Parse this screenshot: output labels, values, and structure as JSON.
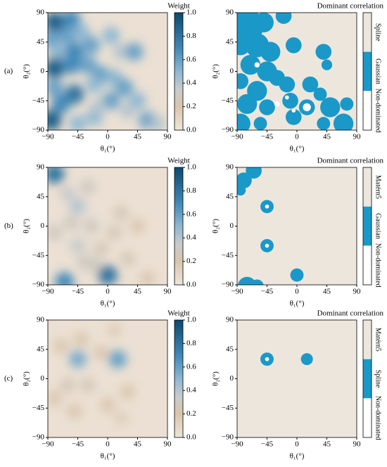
{
  "row_labels": [
    "(a)",
    "(b)",
    "(c)"
  ],
  "chart_data": [
    {
      "type": "heatmap",
      "colorbar_title": "Weight",
      "xlabel": "θ₁(°)",
      "ylabel": "θ₂(°)",
      "xlim": [
        -90,
        90
      ],
      "ylim": [
        -90,
        90
      ],
      "xticks": [
        {
          "value": -90,
          "label": "−90"
        },
        {
          "value": -45,
          "label": "−45"
        },
        0,
        45,
        90
      ],
      "yticks": [
        {
          "value": -90,
          "label": "−90"
        },
        {
          "value": -45,
          "label": "−45"
        },
        0,
        45,
        90
      ],
      "clim": [
        0,
        1
      ],
      "cticks": [
        {
          "value": 0,
          "label": "0.0"
        },
        {
          "value": 0.2,
          "label": "0.2"
        },
        {
          "value": 0.4,
          "label": "0.4"
        },
        {
          "value": 0.6,
          "label": "0.6"
        },
        {
          "value": 0.8,
          "label": "0.8"
        },
        {
          "value": 1,
          "label": "1.0"
        }
      ],
      "x": [
        -80,
        -55,
        -85,
        -60,
        -40,
        -25,
        -75,
        -50,
        -80,
        -55,
        -30,
        -10,
        -20,
        -80,
        -50,
        -70,
        -85,
        -45,
        -20,
        5,
        10,
        25,
        45,
        60,
        20,
        5,
        40,
        30,
        75,
        -15
      ],
      "y": [
        75,
        80,
        50,
        55,
        60,
        40,
        30,
        30,
        5,
        10,
        10,
        -5,
        -20,
        -25,
        -35,
        -50,
        -75,
        -80,
        -70,
        -45,
        -10,
        -25,
        -45,
        -75,
        30,
        55,
        30,
        -60,
        -80,
        -55
      ],
      "values": [
        0.9,
        0.7,
        0.6,
        0.6,
        0.5,
        0.6,
        0.5,
        0.7,
        0.9,
        0.7,
        0.6,
        0.6,
        0.5,
        0.6,
        0.8,
        0.7,
        0.9,
        0.5,
        0.5,
        0.6,
        0.5,
        0.6,
        0.5,
        0.6,
        0.4,
        0.5,
        0.6,
        0.4,
        0.4,
        0.4
      ]
    },
    {
      "type": "category_map",
      "colorbar_title": "Dominant correlation",
      "xlabel": "θ₁(°)",
      "ylabel": "θ₂(°)",
      "xlim": [
        -90,
        90
      ],
      "ylim": [
        -90,
        90
      ],
      "xticks": [
        {
          "value": -90,
          "label": "−90"
        },
        {
          "value": -45,
          "label": "−45"
        },
        0,
        45,
        90
      ],
      "yticks": [
        {
          "value": -90,
          "label": "−90"
        },
        {
          "value": -45,
          "label": "−45"
        },
        0,
        45,
        90
      ],
      "categories": [
        "Spline",
        "Gaussian",
        "Non-dominated"
      ],
      "colors": [
        "#ede6dd",
        "#1a99c9",
        "#ffffff"
      ],
      "x": [
        -75,
        -50,
        -85,
        -60,
        -40,
        -70,
        -45,
        -30,
        -15,
        -85,
        -60,
        -75,
        -45,
        -85,
        -55,
        -10,
        -5,
        20,
        15,
        35,
        50,
        70,
        40,
        -5,
        -20,
        40,
        45,
        75,
        -30,
        -60,
        -15,
        -5,
        15
      ],
      "y": [
        70,
        75,
        40,
        40,
        30,
        10,
        0,
        -10,
        -20,
        -15,
        -30,
        -50,
        -55,
        -80,
        -80,
        -45,
        -70,
        -20,
        -55,
        -35,
        -55,
        -80,
        -80,
        40,
        85,
        30,
        10,
        -50,
        -50,
        10,
        -40,
        -60,
        -55
      ],
      "size": [
        25,
        15,
        15,
        18,
        15,
        15,
        15,
        12,
        12,
        12,
        15,
        15,
        12,
        15,
        10,
        12,
        12,
        12,
        12,
        10,
        15,
        15,
        10,
        12,
        12,
        12,
        8,
        10,
        4,
        4,
        3,
        3,
        6
      ],
      "category": [
        1,
        1,
        1,
        1,
        1,
        1,
        1,
        1,
        1,
        1,
        1,
        1,
        1,
        1,
        1,
        1,
        1,
        1,
        1,
        1,
        1,
        1,
        1,
        1,
        1,
        1,
        1,
        1,
        2,
        2,
        2,
        2,
        2
      ]
    },
    {
      "type": "heatmap",
      "colorbar_title": "Weight",
      "xlabel": "θ₁(°)",
      "ylabel": "θ₂(°)",
      "xlim": [
        -90,
        90
      ],
      "ylim": [
        -90,
        90
      ],
      "xticks": [
        {
          "value": -90,
          "label": "−90"
        },
        {
          "value": -45,
          "label": "−45"
        },
        0,
        45,
        90
      ],
      "yticks": [
        {
          "value": -90,
          "label": "−90"
        },
        {
          "value": -45,
          "label": "−45"
        },
        0,
        45,
        90
      ],
      "clim": [
        0,
        1
      ],
      "cticks": [
        {
          "value": 0,
          "label": "0.0"
        },
        {
          "value": 0.2,
          "label": "0.2"
        },
        {
          "value": 0.4,
          "label": "0.4"
        },
        {
          "value": 0.6,
          "label": "0.6"
        },
        {
          "value": 0.8,
          "label": "0.8"
        },
        {
          "value": 1,
          "label": "1.0"
        }
      ],
      "x": [
        -80,
        -65,
        0,
        -45,
        -45,
        -60,
        -30,
        -55,
        -25,
        -80,
        -10,
        30,
        20,
        45,
        -20,
        60,
        -35,
        10
      ],
      "y": [
        80,
        -85,
        -75,
        30,
        -30,
        50,
        60,
        5,
        0,
        -10,
        -35,
        -50,
        20,
        0,
        -60,
        -80,
        -55,
        -10
      ],
      "values": [
        0.8,
        0.7,
        0.8,
        0.4,
        0.35,
        0.35,
        0.3,
        0.3,
        0.3,
        0.3,
        0.25,
        0.25,
        0.25,
        0.2,
        0.3,
        0.2,
        0.3,
        0.25
      ]
    },
    {
      "type": "category_map",
      "colorbar_title": "Dominant correlation",
      "xlabel": "θ₁(°)",
      "ylabel": "θ₂(°)",
      "xlim": [
        -90,
        90
      ],
      "ylim": [
        -90,
        90
      ],
      "xticks": [
        {
          "value": -90,
          "label": "−90"
        },
        {
          "value": -45,
          "label": "−45"
        },
        0,
        45,
        90
      ],
      "yticks": [
        {
          "value": -90,
          "label": "−90"
        },
        {
          "value": -45,
          "label": "−45"
        },
        0,
        45,
        90
      ],
      "categories": [
        "Matérn5",
        "Gaussian",
        "Non-dominated"
      ],
      "colors": [
        "#ede6dd",
        "#1a99c9",
        "#ffffff"
      ],
      "x": [
        -80,
        -65,
        -85,
        -45,
        -45,
        0,
        -75,
        -60,
        -45,
        -45
      ],
      "y": [
        70,
        85,
        55,
        30,
        -30,
        -75,
        -92,
        -92,
        30,
        -30
      ],
      "size": [
        12,
        12,
        8,
        10,
        10,
        10,
        14,
        10,
        3,
        3
      ],
      "category": [
        1,
        1,
        1,
        1,
        1,
        1,
        1,
        1,
        2,
        2
      ]
    },
    {
      "type": "heatmap",
      "colorbar_title": "Weight",
      "xlabel": "θ₁(°)",
      "ylabel": "θ₂(°)",
      "xlim": [
        -90,
        90
      ],
      "ylim": [
        -90,
        90
      ],
      "xticks": [
        {
          "value": -90,
          "label": "−90"
        },
        {
          "value": -45,
          "label": "−45"
        },
        0,
        45,
        90
      ],
      "yticks": [
        {
          "value": -90,
          "label": "−90"
        },
        {
          "value": -45,
          "label": "−45"
        },
        0,
        45,
        90
      ],
      "clim": [
        0,
        1
      ],
      "cticks": [
        {
          "value": 0,
          "label": "0.0"
        },
        {
          "value": 0.2,
          "label": "0.2"
        },
        {
          "value": 0.4,
          "label": "0.4"
        },
        {
          "value": 0.6,
          "label": "0.6"
        },
        {
          "value": 0.8,
          "label": "0.8"
        },
        {
          "value": 1,
          "label": "1.0"
        }
      ],
      "x": [
        -45,
        15,
        -60,
        -30,
        -10,
        -70,
        -40,
        0,
        30,
        -50,
        20,
        -80,
        10
      ],
      "y": [
        30,
        30,
        -10,
        -10,
        40,
        50,
        60,
        -40,
        -20,
        -50,
        -60,
        -30,
        75
      ],
      "values": [
        0.55,
        0.6,
        0.25,
        0.25,
        0.2,
        0.2,
        0.2,
        0.2,
        0.2,
        0.2,
        0.15,
        0.2,
        0.15
      ]
    },
    {
      "type": "category_map",
      "colorbar_title": "Dominant correlation",
      "xlabel": "θ₁(°)",
      "ylabel": "θ₂(°)",
      "xlim": [
        -90,
        90
      ],
      "ylim": [
        -90,
        90
      ],
      "xticks": [
        {
          "value": -90,
          "label": "−90"
        },
        {
          "value": -45,
          "label": "−45"
        },
        0,
        45,
        90
      ],
      "yticks": [
        {
          "value": -90,
          "label": "−90"
        },
        {
          "value": -45,
          "label": "−45"
        },
        0,
        45,
        90
      ],
      "categories": [
        "Matérn5",
        "Spline",
        "Non-dominated"
      ],
      "colors": [
        "#ede6dd",
        "#1a99c9",
        "#ffffff"
      ],
      "x": [
        -45,
        15,
        -45
      ],
      "y": [
        30,
        30,
        30
      ],
      "size": [
        10,
        9,
        3
      ],
      "category": [
        1,
        1,
        2
      ]
    }
  ]
}
